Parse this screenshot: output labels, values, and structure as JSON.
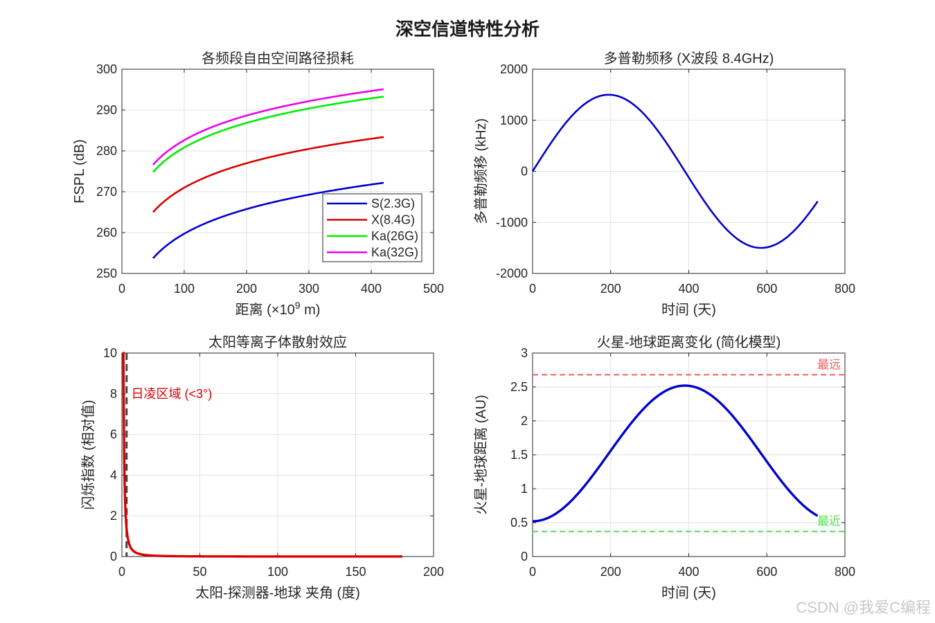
{
  "figure": {
    "suptitle": "深空信道特性分析",
    "watermark": "CSDN @我爱C编程"
  },
  "colors": {
    "blue": "#0000cc",
    "red": "#d90000",
    "green": "#00ee00",
    "magenta": "#ee00ee",
    "dash_gray": "#404040",
    "far_line": "#f06060",
    "near_line": "#50e050",
    "grid": "#e2e2e2",
    "axis": "#262626"
  },
  "chart_data": [
    {
      "id": "fspl",
      "type": "line",
      "title": "各频段自由空间路径损耗",
      "xlabel_prefix": "距离 (×10",
      "xlabel_exp": "9",
      "xlabel_suffix": " m)",
      "ylabel": "FSPL (dB)",
      "xlim": [
        0,
        500
      ],
      "ylim": [
        250,
        300
      ],
      "xticks": [
        "0",
        "100",
        "200",
        "300",
        "400",
        "500"
      ],
      "yticks": [
        "250",
        "260",
        "270",
        "280",
        "290",
        "300"
      ],
      "x_range": [
        50,
        420
      ],
      "legend_position": "bottom-right",
      "series": [
        {
          "name": "S(2.3G)",
          "color": "blue",
          "start": 253.7,
          "end": 272.2
        },
        {
          "name": "X(8.4G)",
          "color": "red",
          "start": 265.0,
          "end": 283.4
        },
        {
          "name": "Ka(26G)",
          "color": "green",
          "start": 274.8,
          "end": 293.3
        },
        {
          "name": "Ka(32G)",
          "color": "magenta",
          "start": 276.6,
          "end": 295.1
        }
      ]
    },
    {
      "id": "doppler",
      "type": "line",
      "title": "多普勒频移 (X波段 8.4GHz)",
      "xlabel": "时间 (天)",
      "ylabel": "多普勒频移 (kHz)",
      "xlim": [
        0,
        800
      ],
      "ylim": [
        -2000,
        2000
      ],
      "xticks": [
        "0",
        "200",
        "400",
        "600",
        "800"
      ],
      "yticks": [
        "-2000",
        "-1000",
        "0",
        "1000",
        "2000"
      ],
      "amplitude": 1500,
      "period_days": 780,
      "x_range": [
        0,
        730
      ],
      "color": "blue"
    },
    {
      "id": "plasma",
      "type": "line",
      "title": "太阳等离子体散射效应",
      "xlabel": "太阳-探测器-地球 夹角 (度)",
      "ylabel": "闪烁指数 (相对值)",
      "xlim": [
        0,
        200
      ],
      "ylim": [
        0,
        10
      ],
      "xticks": [
        "0",
        "50",
        "100",
        "150",
        "200"
      ],
      "yticks": [
        "0",
        "2",
        "4",
        "6",
        "8",
        "10"
      ],
      "x_range": [
        0.5,
        180
      ],
      "formula": "y = 10 / x^1.8",
      "threshold_x": 3,
      "annotation": "日凌区域 (<3°)",
      "annotation_at": [
        6,
        8
      ],
      "color": "red"
    },
    {
      "id": "distance",
      "type": "line",
      "title": "火星-地球距离变化 (简化模型)",
      "xlabel": "时间 (天)",
      "ylabel": "火星-地球距离 (AU)",
      "xlim": [
        0,
        800
      ],
      "ylim": [
        0,
        3
      ],
      "xticks": [
        "0",
        "200",
        "400",
        "600",
        "800"
      ],
      "yticks": [
        "0",
        "0.5",
        "1",
        "1.5",
        "2",
        "2.5",
        "3"
      ],
      "mean": 1.52,
      "amplitude": 1.0,
      "period_days": 780,
      "x_range": [
        0,
        730
      ],
      "color": "blue",
      "hlines": [
        {
          "label": "最远",
          "y": 2.68,
          "color": "far_line"
        },
        {
          "label": "最近",
          "y": 0.37,
          "color": "near_line"
        }
      ]
    }
  ]
}
